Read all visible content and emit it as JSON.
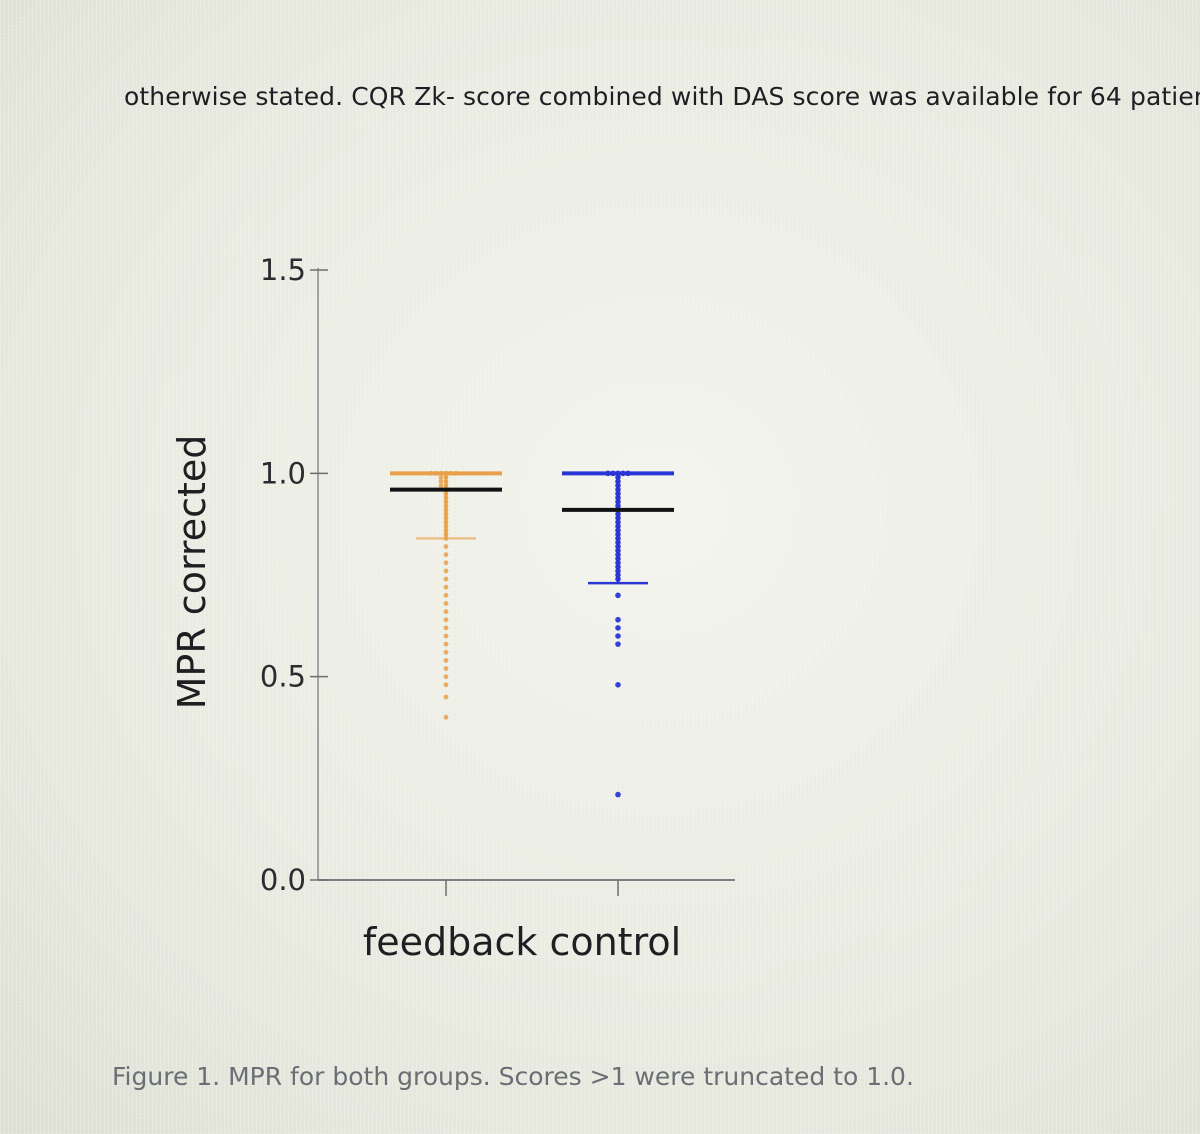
{
  "document": {
    "top_text": "otherwise stated. CQR Zk- score combined with DAS score was available for 64 patien",
    "caption": "Figure 1. MPR for both groups. Scores >1 were truncated to 1.0."
  },
  "chart_data": {
    "type": "scatter",
    "title": "",
    "ylabel": "MPR corrected",
    "xlabel": "feedback control",
    "ylim": [
      0.0,
      1.5
    ],
    "yticks": [
      "0.0",
      "0.5",
      "1.0",
      "1.5"
    ],
    "yticks_values": [
      0.0,
      0.5,
      1.0,
      1.5
    ],
    "categories": [
      "feedback",
      "control"
    ],
    "grid": false,
    "legend": "none",
    "series": [
      {
        "category": "feedback",
        "color": "#e8a14a",
        "mean": 0.96,
        "sd_upper": 1.0,
        "sd_lower": 0.84,
        "points": [
          1.0,
          1.0,
          1.0,
          1.0,
          1.0,
          1.0,
          0.99,
          0.99,
          0.98,
          0.98,
          0.97,
          0.97,
          0.96,
          0.95,
          0.94,
          0.93,
          0.92,
          0.91,
          0.9,
          0.89,
          0.88,
          0.87,
          0.86,
          0.85,
          0.84,
          0.82,
          0.8,
          0.78,
          0.76,
          0.74,
          0.72,
          0.7,
          0.68,
          0.66,
          0.64,
          0.62,
          0.6,
          0.58,
          0.56,
          0.54,
          0.52,
          0.5,
          0.48,
          0.45,
          0.4
        ]
      },
      {
        "category": "control",
        "color": "#2a36d6",
        "mean": 0.91,
        "sd_upper": 1.0,
        "sd_lower": 0.73,
        "points": [
          1.0,
          1.0,
          1.0,
          1.0,
          1.0,
          0.99,
          0.98,
          0.97,
          0.96,
          0.95,
          0.94,
          0.93,
          0.92,
          0.91,
          0.9,
          0.89,
          0.88,
          0.87,
          0.86,
          0.85,
          0.84,
          0.83,
          0.82,
          0.81,
          0.8,
          0.79,
          0.78,
          0.77,
          0.76,
          0.75,
          0.74,
          0.7,
          0.64,
          0.62,
          0.6,
          0.58,
          0.48,
          0.21
        ]
      }
    ]
  }
}
